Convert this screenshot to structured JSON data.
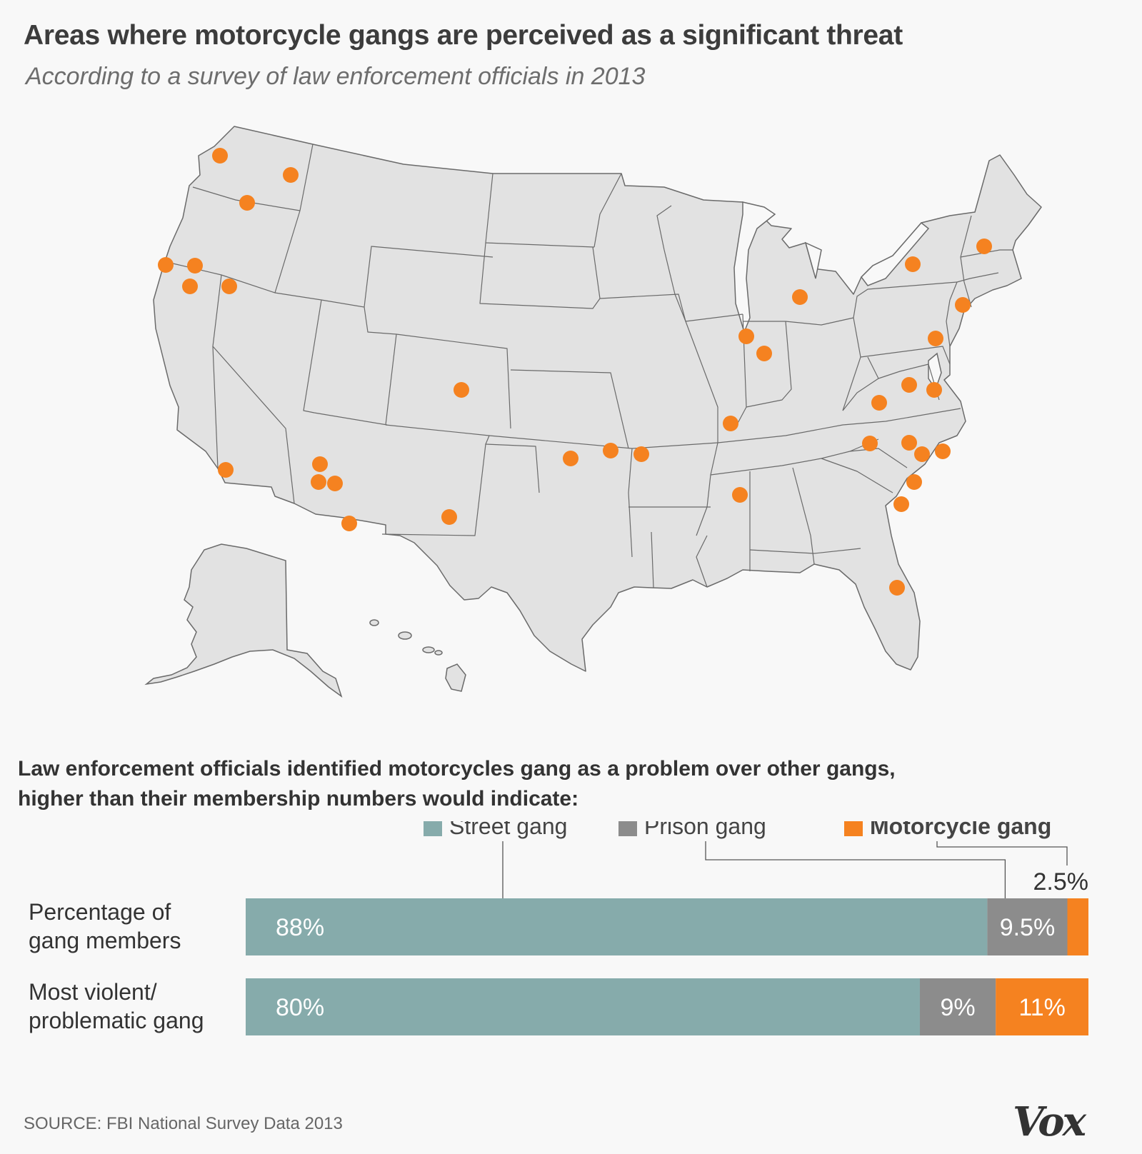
{
  "title": "Areas where motorcycle gangs are perceived as a significant threat",
  "subtitle": "According to a survey of law enforcement officials in 2013",
  "colors": {
    "street": "#86abab",
    "prison": "#8c8c8c",
    "motorcycle": "#f58220",
    "land": "#e2e2e2",
    "border": "#6a6a6a"
  },
  "map": {
    "marker_color": "#f58220",
    "marker_count": 42
  },
  "chart_data": {
    "type": "bar",
    "orientation": "horizontal",
    "stacked": true,
    "title": "Law enforcement officials identified motorcycles gang as a problem over other gangs, higher than their membership numbers would indicate:",
    "categories": [
      "Percentage of gang members",
      "Most violent/ problematic gang"
    ],
    "category_lines": [
      [
        "Percentage of",
        "gang members"
      ],
      [
        "Most violent/",
        "problematic gang"
      ]
    ],
    "series": [
      {
        "name": "Street gang",
        "values": [
          88,
          80
        ],
        "labels": [
          "88%",
          "80%"
        ],
        "color": "#86abab"
      },
      {
        "name": "Prison gang",
        "values": [
          9.5,
          9
        ],
        "labels": [
          "9.5%",
          "9%"
        ],
        "color": "#8c8c8c"
      },
      {
        "name": "Motorcycle gang",
        "values": [
          2.5,
          11
        ],
        "labels": [
          "2.5%",
          "11%"
        ],
        "color": "#f58220"
      }
    ],
    "xlim": [
      0,
      100
    ],
    "legend_position": "top-right",
    "grid": false
  },
  "source": "SOURCE: FBI National Survey Data 2013",
  "logo": "Vox"
}
